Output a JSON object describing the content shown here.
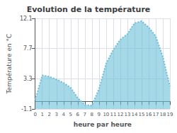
{
  "chart_data": {
    "type": "area",
    "title": "Evolution de la température",
    "xlabel": "heure par heure",
    "ylabel": "Température en °C",
    "x": [
      0,
      1,
      2,
      3,
      4,
      5,
      6,
      7,
      8,
      9,
      10,
      11,
      12,
      13,
      14,
      15,
      16,
      17,
      18,
      19
    ],
    "values": [
      0.2,
      3.8,
      3.6,
      3.2,
      2.7,
      2.0,
      0.5,
      -0.5,
      -0.6,
      1.8,
      5.5,
      7.5,
      9.0,
      9.8,
      11.4,
      11.7,
      10.8,
      9.5,
      6.5,
      2.2
    ],
    "color": "#6bbfd8",
    "line_style": "dotted",
    "xlim": [
      0,
      19
    ],
    "xticks": [
      0,
      1,
      2,
      3,
      4,
      5,
      6,
      7,
      8,
      9,
      10,
      11,
      12,
      13,
      14,
      15,
      16,
      17,
      18,
      19
    ],
    "ylim": [
      -1.1,
      12.1
    ],
    "yticks": [
      -1.1,
      3.3,
      7.7,
      12.1
    ],
    "grid": true
  }
}
